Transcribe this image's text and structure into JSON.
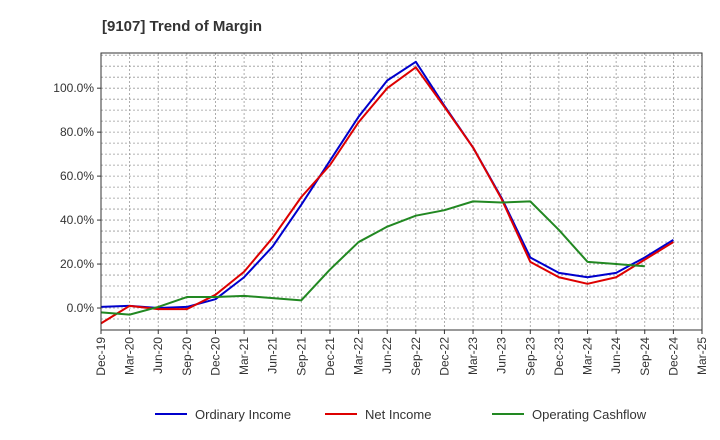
{
  "chart_data": {
    "type": "line",
    "title": "[9107]  Trend of Margin",
    "xlabel": "",
    "ylabel": "",
    "x": [
      "Dec-19",
      "Mar-20",
      "Jun-20",
      "Sep-20",
      "Dec-20",
      "Mar-21",
      "Jun-21",
      "Sep-21",
      "Dec-21",
      "Mar-22",
      "Jun-22",
      "Sep-22",
      "Dec-22",
      "Mar-23",
      "Jun-23",
      "Sep-23",
      "Dec-23",
      "Mar-24",
      "Jun-24",
      "Sep-24",
      "Dec-24",
      "Mar-25"
    ],
    "x_tick_labels": [
      "Dec-19",
      "Mar-20",
      "Jun-20",
      "Sep-20",
      "Dec-20",
      "Mar-21",
      "Jun-21",
      "Sep-21",
      "Dec-21",
      "Mar-22",
      "Jun-22",
      "Sep-22",
      "Dec-22",
      "Mar-23",
      "Jun-23",
      "Sep-23",
      "Dec-23",
      "Mar-24",
      "Jun-24",
      "Sep-24",
      "Dec-24",
      "Mar-25"
    ],
    "y_tick_values": [
      0,
      20,
      40,
      60,
      80,
      100
    ],
    "y_tick_labels": [
      "0.0%",
      "20.0%",
      "40.0%",
      "60.0%",
      "80.0%",
      "100.0%"
    ],
    "ylim": [
      -10,
      116
    ],
    "grid": true,
    "legend_position": "bottom",
    "series": [
      {
        "name": "Ordinary Income",
        "color": "#0000cc",
        "values": [
          0.5,
          1.0,
          0.0,
          0.5,
          4.0,
          14.0,
          28.0,
          47.0,
          67.0,
          87.0,
          103.5,
          112.0,
          92.0,
          73.0,
          50.0,
          23.0,
          16.0,
          14.0,
          16.0,
          23.0,
          31.0,
          null
        ]
      },
      {
        "name": "Net Income",
        "color": "#dd0000",
        "values": [
          -7.0,
          1.0,
          -0.5,
          -0.5,
          6.0,
          16.5,
          32.0,
          50.5,
          65.0,
          84.5,
          100.0,
          109.5,
          91.5,
          73.0,
          49.5,
          21.0,
          14.0,
          11.0,
          14.0,
          22.0,
          30.0,
          null
        ]
      },
      {
        "name": "Operating Cashflow",
        "color": "#228822",
        "values": [
          -2.0,
          -3.0,
          0.5,
          5.0,
          5.0,
          5.5,
          4.5,
          3.5,
          17.5,
          30.0,
          37.0,
          42.0,
          44.5,
          48.5,
          48.0,
          48.5,
          35.5,
          21.0,
          20.0,
          19.0,
          null,
          null
        ]
      }
    ]
  }
}
